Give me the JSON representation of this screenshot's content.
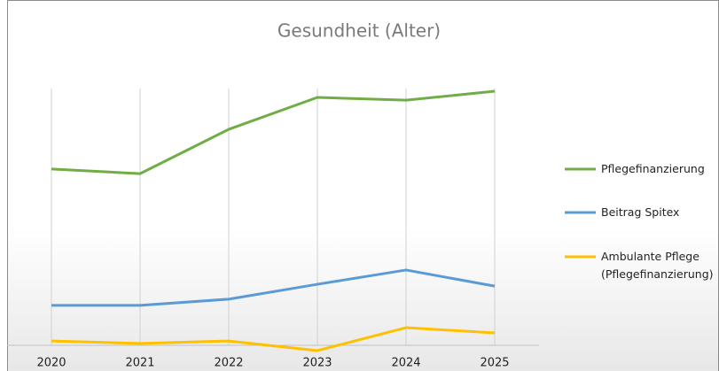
{
  "chart_data": {
    "type": "line",
    "title": "Gesundheit (Alter)",
    "categories": [
      "2020",
      "2021",
      "2022",
      "2023",
      "2024",
      "2025"
    ],
    "series": [
      {
        "name": "Pflegefinanzierung",
        "color": "#70ad47",
        "values": [
          56.9,
          55.4,
          69.7,
          80,
          79.1,
          82
        ]
      },
      {
        "name": "Beitrag Spitex",
        "color": "#5b9bd5",
        "values": [
          12.9,
          12.9,
          14.9,
          19.7,
          24.3,
          19.1
        ]
      },
      {
        "name": "Ambulante Pflege (Pflegefinanzierung)",
        "color": "#ffc000",
        "values": [
          1.4,
          0.6,
          1.4,
          -1.7,
          5.7,
          4
        ]
      }
    ],
    "ylim": [
      -8,
      100
    ],
    "legend": "right"
  }
}
